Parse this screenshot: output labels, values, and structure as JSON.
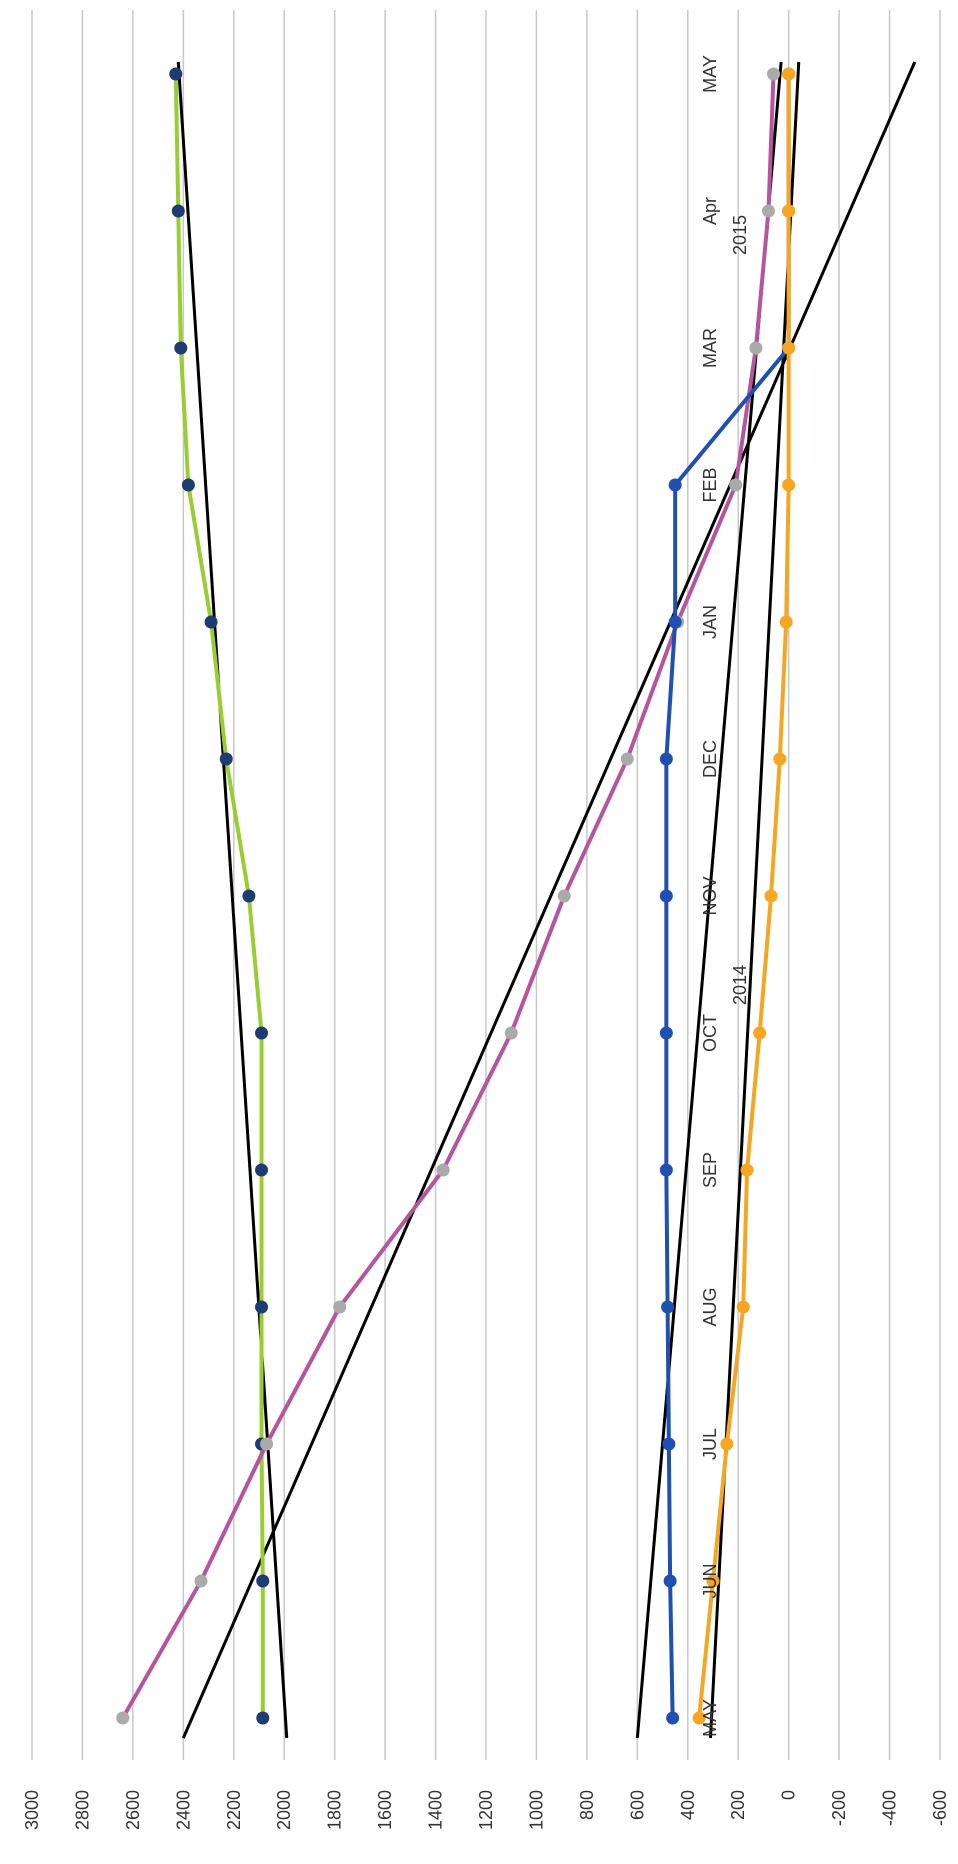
{
  "chart_data": {
    "type": "line",
    "orientation": "rotated-90-ccw",
    "value_axis": {
      "ticks": [
        "3000",
        "2800",
        "2600",
        "2400",
        "2200",
        "2000",
        "1800",
        "1600",
        "1400",
        "1200",
        "1000",
        "800",
        "600",
        "400",
        "200",
        "0",
        "-200",
        "-400",
        "-600"
      ],
      "range": [
        -600,
        3000
      ],
      "gridlines": true
    },
    "categories": [
      "MAY",
      "JUN",
      "JUL",
      "AUG",
      "SEP",
      "OCT",
      "NOV",
      "DEC",
      "JAN",
      "FEB",
      "MAR",
      "Apr",
      "MAY"
    ],
    "year_labels": [
      "2014",
      "2015"
    ],
    "series": [
      {
        "color": "#9acd32",
        "marker_color": "#1f3b73",
        "values": [
          2085,
          2085,
          2090,
          2090,
          2090,
          2090,
          2140,
          2230,
          2290,
          2380,
          2410,
          2420,
          2430
        ]
      },
      {
        "color": "#b5559f",
        "marker_color": "#aaaaaa",
        "values": [
          2640,
          2330,
          2070,
          1780,
          1370,
          1100,
          890,
          640,
          440,
          210,
          130,
          80,
          60
        ]
      },
      {
        "color": "#1f4fb0",
        "marker_color": "#1f4fb0",
        "values": [
          460,
          470,
          475,
          480,
          485,
          485,
          485,
          485,
          450,
          450,
          0,
          0,
          0
        ]
      },
      {
        "color": "#f5a623",
        "marker_color": "#f5a623",
        "values": [
          355,
          300,
          245,
          180,
          165,
          115,
          70,
          35,
          10,
          0,
          0,
          0,
          0
        ]
      }
    ],
    "trend_lines": [
      {
        "color": "#000000",
        "start": 1990,
        "end": 2420
      },
      {
        "color": "#000000",
        "start": 2400,
        "end": -500
      },
      {
        "color": "#000000",
        "start": 600,
        "end": 30
      },
      {
        "color": "#000000",
        "start": 310,
        "end": -40
      }
    ]
  }
}
